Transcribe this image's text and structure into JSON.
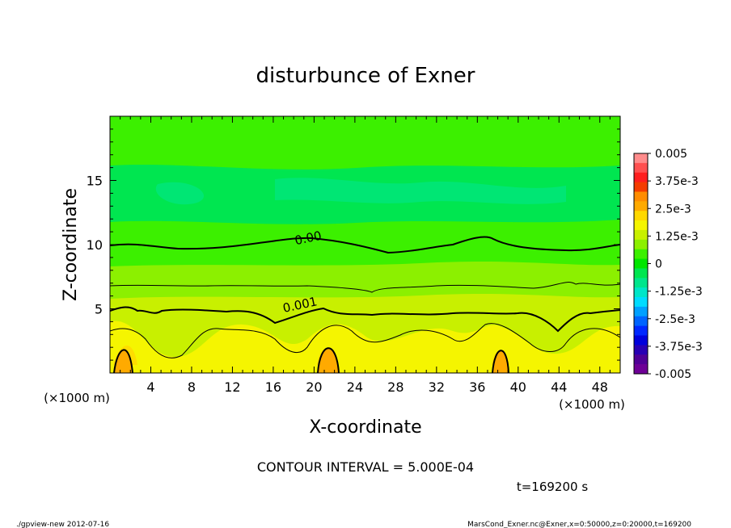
{
  "chart_data": {
    "type": "heatmap",
    "title": "disturbunce of Exner",
    "xlabel": "X-coordinate",
    "ylabel": "Z-coordinate",
    "x_unit_left": "(×1000 m)",
    "x_unit_right": "(×1000 m)",
    "xlim": [
      0,
      50
    ],
    "ylim": [
      0,
      20
    ],
    "x_ticks": [
      4,
      8,
      12,
      16,
      20,
      24,
      28,
      32,
      36,
      40,
      44,
      48
    ],
    "y_ticks": [
      5,
      10,
      15
    ],
    "colorbar": {
      "vmin": -0.005,
      "vmax": 0.005,
      "labels": [
        "0.005",
        "3.75e-3",
        "2.5e-3",
        "1.25e-3",
        "0",
        "-1.25e-3",
        "-2.5e-3",
        "-3.75e-3",
        "-0.005"
      ],
      "colors": [
        "#ff8c8c",
        "#ff5050",
        "#ff1e1e",
        "#f53c00",
        "#ff8c00",
        "#ffaa00",
        "#ffd800",
        "#f5f500",
        "#c8f000",
        "#8cf000",
        "#3cf000",
        "#00e600",
        "#00e650",
        "#00e68c",
        "#00e6c8",
        "#00dcff",
        "#00a0ff",
        "#0064ff",
        "#0028ff",
        "#0000dc",
        "#2800b4",
        "#500096",
        "#6e0096"
      ]
    },
    "contour_labels": [
      {
        "text": "0.00",
        "x": 19.5,
        "z": 10.2
      },
      {
        "text": "0.001",
        "x": 18.7,
        "z": 5.0
      }
    ],
    "contour_interval_text": "CONTOUR INTERVAL = 5.000E-04",
    "time_text": "t=169200 s"
  },
  "footer": {
    "left": "./gpview-new  2012-07-16",
    "right": "MarsCond_Exner.nc@Exner,x=0:50000,z=0:20000,t=169200"
  }
}
